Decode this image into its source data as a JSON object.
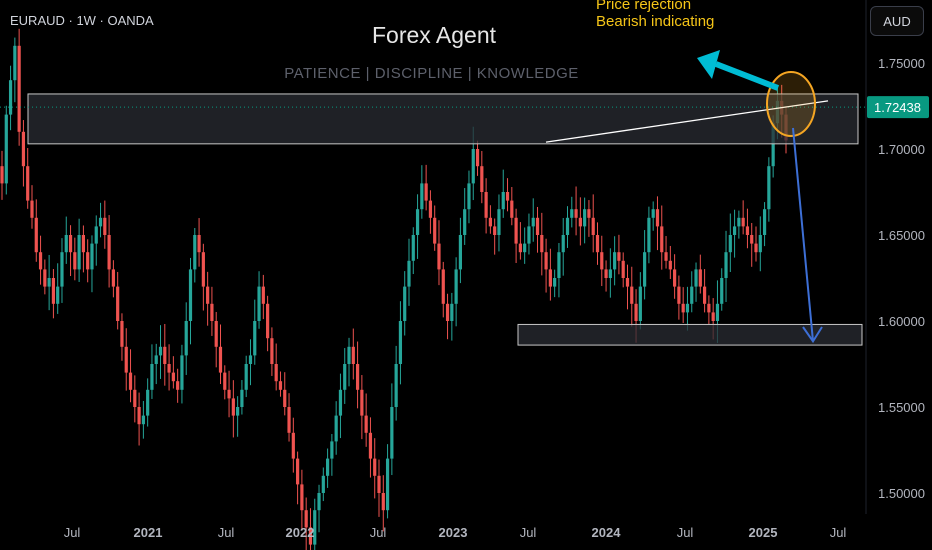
{
  "header": {
    "symbol": "EURAUD · 1W · OANDA",
    "currency_button": "AUD",
    "title": "Forex Agent",
    "subtitle": "PATIENCE  |  DISCIPLINE  |  KNOWLEDGE"
  },
  "annotations": {
    "note_line1": "Price rejection",
    "note_line2": "Bearish indicating"
  },
  "colors": {
    "background": "#000000",
    "up_candle": "#26a69a",
    "down_candle": "#ef5350",
    "zone_fill": "#2a2c33",
    "zone_border": "#c8c8c8",
    "trendline": "#ffffff",
    "highlight_circle": "#f5a623",
    "note_text": "#f5c518",
    "up_arrow": "#00bcd4",
    "down_arrow": "#3d6fd6",
    "price_tag": "#089981",
    "axis_text": "#b2b5be"
  },
  "chart_data": {
    "type": "candlestick",
    "symbol": "EURAUD",
    "timeframe": "1W",
    "source": "OANDA",
    "y_axis_ticks": [
      "1.75000",
      "1.70000",
      "1.65000",
      "1.60000",
      "1.55000",
      "1.50000"
    ],
    "x_axis_ticks": [
      "Jul",
      "2021",
      "Jul",
      "2022",
      "Jul",
      "2023",
      "Jul",
      "2024",
      "Jul",
      "2025",
      "Jul"
    ],
    "ylim": [
      1.487,
      1.792
    ],
    "current_price": "1.72438",
    "grid": false,
    "closes": [
      1.68,
      1.72,
      1.74,
      1.76,
      1.71,
      1.69,
      1.67,
      1.66,
      1.64,
      1.63,
      1.62,
      1.625,
      1.61,
      1.62,
      1.64,
      1.65,
      1.64,
      1.63,
      1.65,
      1.64,
      1.63,
      1.645,
      1.655,
      1.66,
      1.65,
      1.63,
      1.62,
      1.6,
      1.585,
      1.57,
      1.56,
      1.55,
      1.54,
      1.545,
      1.56,
      1.575,
      1.58,
      1.585,
      1.575,
      1.57,
      1.565,
      1.56,
      1.58,
      1.6,
      1.63,
      1.65,
      1.64,
      1.62,
      1.61,
      1.6,
      1.585,
      1.57,
      1.56,
      1.555,
      1.545,
      1.55,
      1.56,
      1.575,
      1.58,
      1.6,
      1.62,
      1.61,
      1.59,
      1.575,
      1.565,
      1.56,
      1.55,
      1.535,
      1.52,
      1.505,
      1.49,
      1.48,
      1.47,
      1.49,
      1.5,
      1.51,
      1.52,
      1.53,
      1.545,
      1.56,
      1.575,
      1.585,
      1.575,
      1.56,
      1.545,
      1.535,
      1.52,
      1.51,
      1.5,
      1.49,
      1.52,
      1.55,
      1.575,
      1.6,
      1.62,
      1.635,
      1.65,
      1.665,
      1.68,
      1.67,
      1.66,
      1.645,
      1.63,
      1.61,
      1.6,
      1.61,
      1.63,
      1.65,
      1.665,
      1.68,
      1.7,
      1.69,
      1.675,
      1.66,
      1.655,
      1.65,
      1.665,
      1.675,
      1.67,
      1.66,
      1.645,
      1.64,
      1.645,
      1.655,
      1.66,
      1.65,
      1.64,
      1.63,
      1.62,
      1.625,
      1.64,
      1.65,
      1.66,
      1.665,
      1.66,
      1.655,
      1.665,
      1.66,
      1.65,
      1.64,
      1.63,
      1.625,
      1.63,
      1.64,
      1.635,
      1.625,
      1.62,
      1.61,
      1.6,
      1.62,
      1.64,
      1.66,
      1.665,
      1.655,
      1.64,
      1.635,
      1.63,
      1.62,
      1.61,
      1.605,
      1.61,
      1.62,
      1.63,
      1.62,
      1.61,
      1.605,
      1.6,
      1.61,
      1.625,
      1.64,
      1.65,
      1.655,
      1.66,
      1.655,
      1.65,
      1.645,
      1.64,
      1.65,
      1.665,
      1.69,
      1.715,
      1.728,
      1.72,
      1.705
    ],
    "levels": {
      "resistance_zone": [
        1.703,
        1.732
      ],
      "support_zone": [
        1.586,
        1.598
      ],
      "trendline_from": {
        "date": "2023-08",
        "price": 1.704
      },
      "trendline_to": {
        "date": "2025-06",
        "price": 1.728
      },
      "projected_target": 1.587
    }
  }
}
